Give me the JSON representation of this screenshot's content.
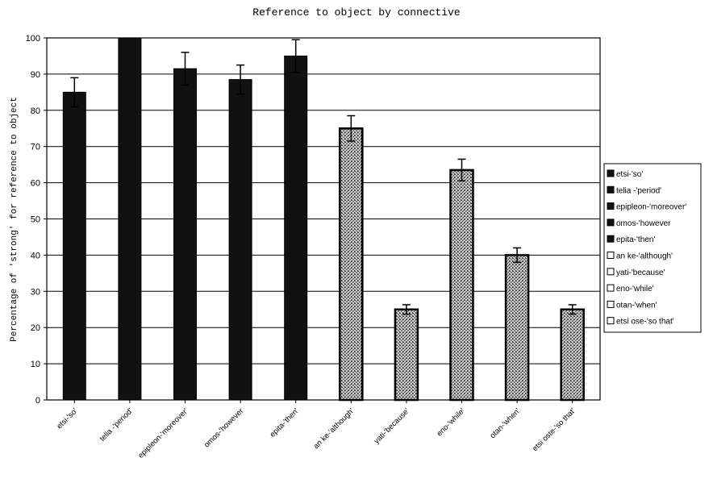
{
  "chart_data": {
    "type": "bar",
    "title": "Reference to object by connective",
    "ylabel": "Percentage of 'strong' for reference to object",
    "xlabel": "",
    "ylim": [
      0,
      100
    ],
    "yticks": [
      0,
      10,
      20,
      30,
      40,
      50,
      60,
      70,
      80,
      90,
      100
    ],
    "grid": true,
    "legend_position": "right",
    "categories": [
      "etsi-'so'",
      "telia -'period'",
      "epipleon-'moreover'",
      "omos-'however",
      "epita-'then'",
      "an ke-'although'",
      "yati-'because'",
      "eno-'while'",
      "otan-'when'",
      "etsi oste-'so that'"
    ],
    "values": [
      85,
      100,
      91.5,
      88.5,
      95,
      75,
      25,
      63.5,
      40,
      25
    ],
    "error": [
      4,
      0,
      4.5,
      4,
      4.5,
      3.5,
      1.3,
      3,
      2,
      1.3
    ],
    "fill_style": [
      "solid",
      "solid",
      "solid",
      "solid",
      "solid",
      "stipple",
      "stipple",
      "stipple",
      "stipple",
      "stipple"
    ],
    "legend": [
      {
        "label": "etsi-'so'",
        "style": "solid"
      },
      {
        "label": "telia -'period'",
        "style": "solid"
      },
      {
        "label": "epipleon-'moreover'",
        "style": "solid"
      },
      {
        "label": "omos-'however",
        "style": "solid"
      },
      {
        "label": "epita-'then'",
        "style": "solid"
      },
      {
        "label": "an ke-'although'",
        "style": "hollow"
      },
      {
        "label": "yati-'because'",
        "style": "hollow"
      },
      {
        "label": "eno-'while'",
        "style": "hollow"
      },
      {
        "label": "otan-'when'",
        "style": "hollow"
      },
      {
        "label": "etsi ose-'so that'",
        "style": "hollow"
      }
    ],
    "colors": {
      "solid": "#111111",
      "stipple": "#8a8a8a",
      "hollow": "#ffffff"
    }
  }
}
